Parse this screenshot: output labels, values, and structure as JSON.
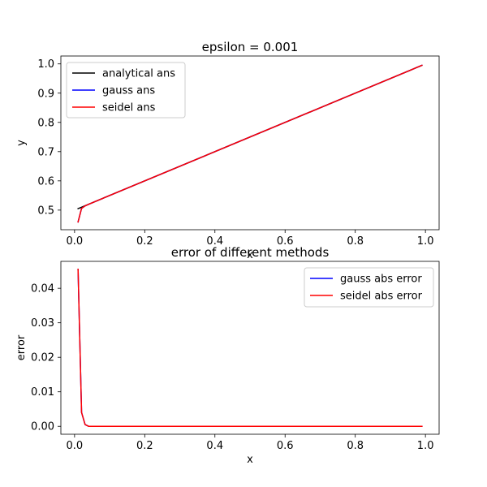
{
  "chart_data": [
    {
      "type": "line",
      "title": "epsilon = 0.001",
      "xlabel": "x",
      "ylabel": "y",
      "xlim": [
        -0.039,
        1.039
      ],
      "ylim": [
        0.433,
        1.027
      ],
      "xticks": [
        0.0,
        0.2,
        0.4,
        0.6,
        0.8,
        1.0
      ],
      "xtick_labels": [
        "0.0",
        "0.2",
        "0.4",
        "0.6",
        "0.8",
        "1.0"
      ],
      "yticks": [
        0.5,
        0.6,
        0.7,
        0.8,
        0.9,
        1.0
      ],
      "ytick_labels": [
        "0.5",
        "0.6",
        "0.7",
        "0.8",
        "0.9",
        "1.0"
      ],
      "grid": false,
      "legend_position": "top-left",
      "series": [
        {
          "name": "analytical ans",
          "color": "#000000",
          "x": [
            0.01,
            0.02,
            0.03,
            0.04,
            0.99
          ],
          "y": [
            0.505,
            0.51,
            0.515,
            0.52,
            0.995
          ]
        },
        {
          "name": "gauss ans",
          "color": "#0000ff",
          "x": [
            0.01,
            0.02,
            0.03,
            0.04,
            0.99
          ],
          "y": [
            0.4595,
            0.506,
            0.5145,
            0.52,
            0.995
          ]
        },
        {
          "name": "seidel ans",
          "color": "#ff0000",
          "x": [
            0.01,
            0.02,
            0.03,
            0.04,
            0.99
          ],
          "y": [
            0.4595,
            0.506,
            0.5145,
            0.52,
            0.995
          ]
        }
      ]
    },
    {
      "type": "line",
      "title": "error of different methods",
      "xlabel": "x",
      "ylabel": "error",
      "xlim": [
        -0.039,
        1.039
      ],
      "ylim": [
        -0.0023,
        0.0478
      ],
      "xticks": [
        0.0,
        0.2,
        0.4,
        0.6,
        0.8,
        1.0
      ],
      "xtick_labels": [
        "0.0",
        "0.2",
        "0.4",
        "0.6",
        "0.8",
        "1.0"
      ],
      "yticks": [
        0.0,
        0.01,
        0.02,
        0.03,
        0.04
      ],
      "ytick_labels": [
        "0.00",
        "0.01",
        "0.02",
        "0.03",
        "0.04"
      ],
      "grid": false,
      "legend_position": "top-right",
      "series": [
        {
          "name": "gauss abs error",
          "color": "#0000ff",
          "x": [
            0.01,
            0.02,
            0.03,
            0.04,
            0.99
          ],
          "y": [
            0.0455,
            0.004,
            0.0005,
            0.0,
            0.0
          ]
        },
        {
          "name": "seidel abs error",
          "color": "#ff0000",
          "x": [
            0.01,
            0.02,
            0.03,
            0.04,
            0.99
          ],
          "y": [
            0.0455,
            0.004,
            0.0005,
            0.0,
            0.0
          ]
        }
      ]
    }
  ]
}
